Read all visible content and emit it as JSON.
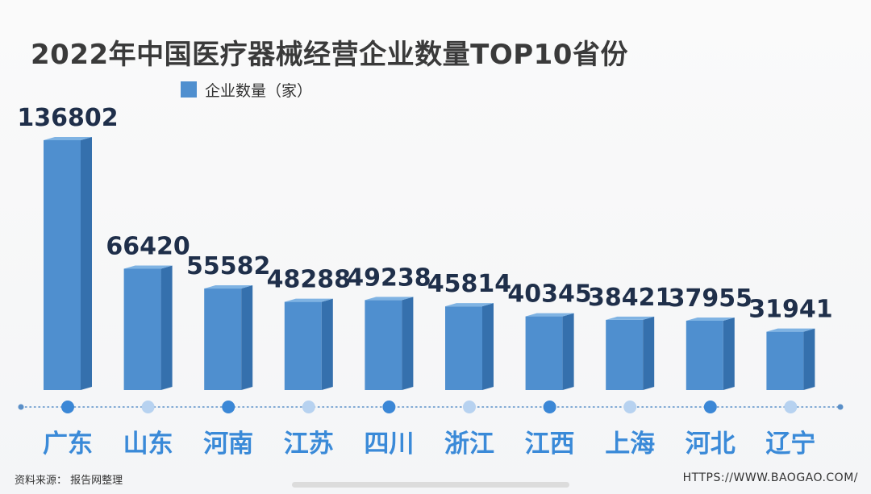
{
  "title": "2022年中国医疗器械经营企业数量TOP10省份",
  "legend": {
    "label": "企业数量（家）"
  },
  "colors": {
    "bar_front": "#4f8fcf",
    "bar_side": "#3570ad",
    "bar_top": "#7fb3e3",
    "value_text": "#1f2f4a",
    "category_text": "#3a8ad8",
    "dot_dark": "#3b87d6",
    "dot_light": "#b7d2f0",
    "axis_line": "#5a8fc8"
  },
  "chart_data": {
    "type": "bar",
    "title": "2022年中国医疗器械经营企业数量TOP10省份",
    "categories": [
      "广东",
      "山东",
      "河南",
      "江苏",
      "四川",
      "浙江",
      "江西",
      "上海",
      "河北",
      "辽宁"
    ],
    "series": [
      {
        "name": "企业数量（家）",
        "values": [
          136802,
          66420,
          55582,
          48288,
          49238,
          45814,
          40345,
          38421,
          37955,
          31941
        ]
      }
    ],
    "xlabel": "",
    "ylabel": "",
    "legend": "top-left",
    "grid": false
  },
  "footer": {
    "source": "资料来源：    报告网整理",
    "url": "HTTPS://WWW.BAOGAO.COM/"
  }
}
